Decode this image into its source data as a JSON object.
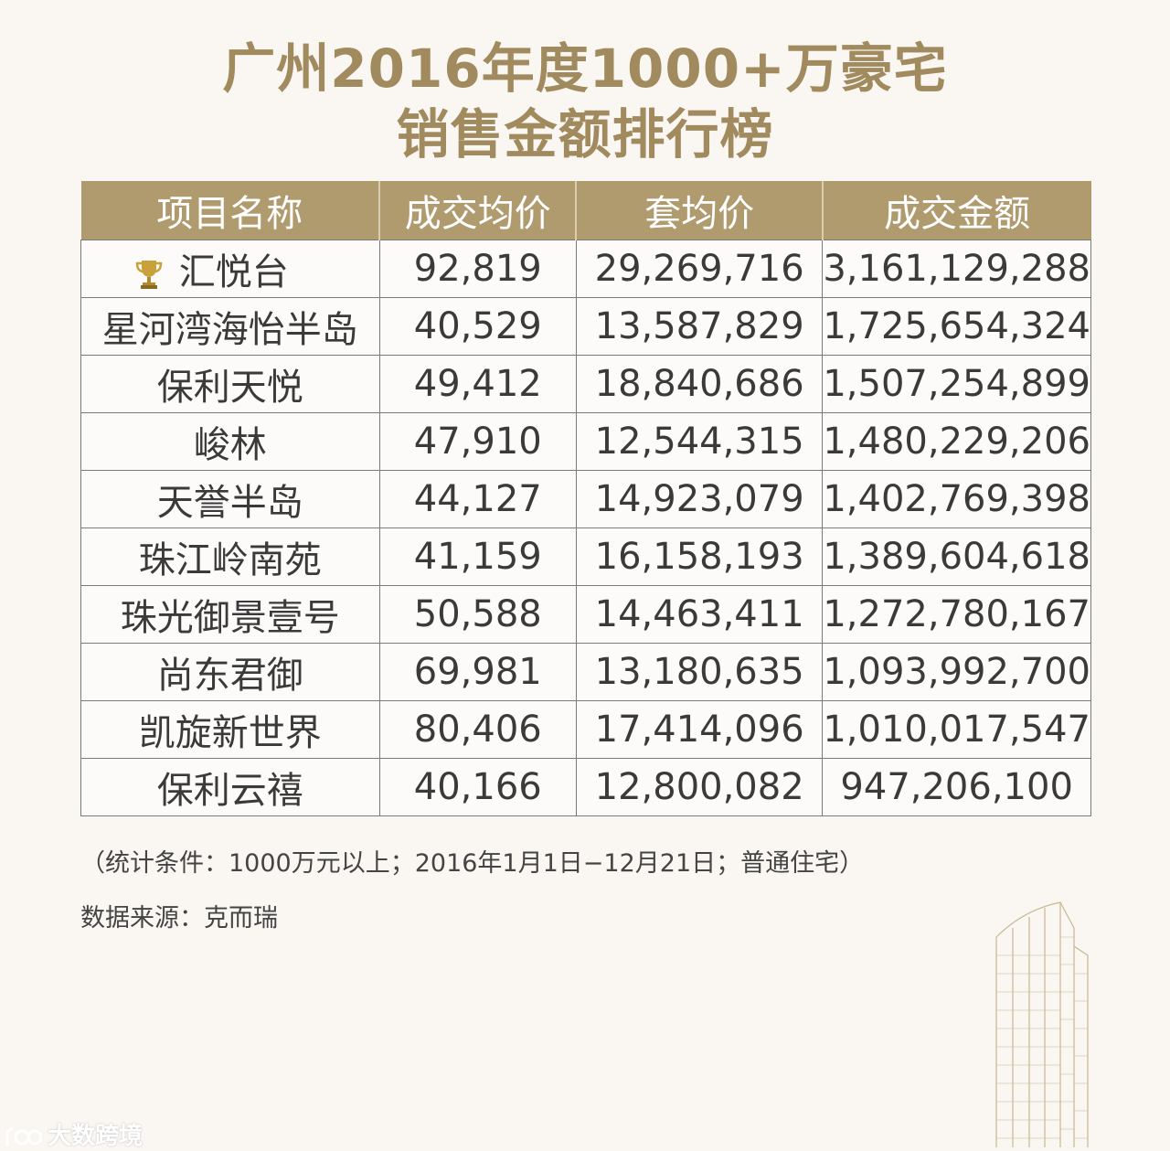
{
  "title_line1": "广州2016年度1000+万豪宅",
  "title_line2": "销售金额排行榜",
  "columns": [
    "项目名称",
    "成交均价",
    "套均价",
    "成交金额"
  ],
  "rows": [
    [
      "汇悦台",
      "92,819",
      "29,269,716",
      "3,161,129,288"
    ],
    [
      "星河湾海怡半岛",
      "40,529",
      "13,587,829",
      "1,725,654,324"
    ],
    [
      "保利天悦",
      "49,412",
      "18,840,686",
      "1,507,254,899"
    ],
    [
      "峻林",
      "47,910",
      "12,544,315",
      "1,480,229,206"
    ],
    [
      "天誉半岛",
      "44,127",
      "14,923,079",
      "1,402,769,398"
    ],
    [
      "珠江岭南苑",
      "41,159",
      "16,158,193",
      "1,389,604,618"
    ],
    [
      "珠光御景壹号",
      "50,588",
      "14,463,411",
      "1,272,780,167"
    ],
    [
      "尚东君御",
      "69,981",
      "13,180,635",
      "1,093,992,700"
    ],
    [
      "凯旋新世界",
      "80,406",
      "17,414,096",
      "1,010,017,547"
    ],
    [
      "保利云禧",
      "40,166",
      "12,800,082",
      "947,206,100"
    ]
  ],
  "note_conditions": "（统计条件：1000万元以上；2016年1月1日−12月21日；普通住宅）",
  "note_source": "数据来源：克而瑞",
  "watermark": "大数跨境",
  "colors": {
    "accent": "#b09b6e",
    "title": "#a08a5e",
    "background": "#faf6f2"
  },
  "icons": {
    "first_place": "trophy-icon",
    "decoration": "skyscraper-illustration"
  }
}
